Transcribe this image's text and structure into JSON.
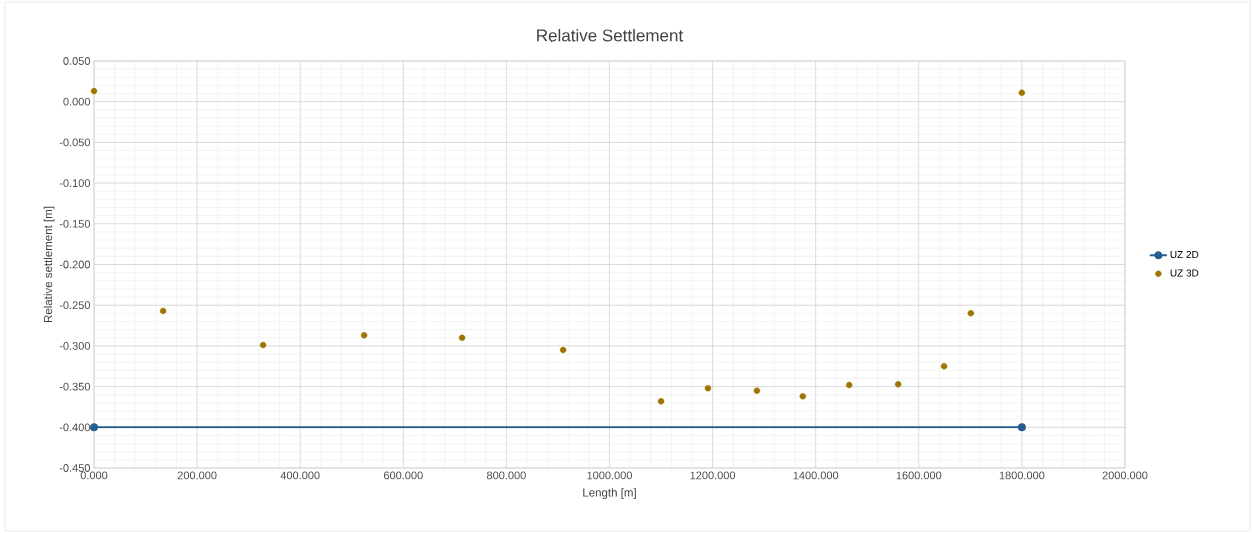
{
  "chart_data": {
    "type": "scatter",
    "title": "Relative Settlement",
    "xlabel": "Length [m]",
    "ylabel": "Relative settlement [m]",
    "xlim": [
      0,
      2000
    ],
    "ylim": [
      -0.45,
      0.05
    ],
    "xticks": [
      {
        "value": 0,
        "label": "0.000"
      },
      {
        "value": 200,
        "label": "200.000"
      },
      {
        "value": 400,
        "label": "400.000"
      },
      {
        "value": 600,
        "label": "600.000"
      },
      {
        "value": 800,
        "label": "800.000"
      },
      {
        "value": 1000,
        "label": "1000.000"
      },
      {
        "value": 1200,
        "label": "1200.000"
      },
      {
        "value": 1400,
        "label": "1400.000"
      },
      {
        "value": 1600,
        "label": "1600.000"
      },
      {
        "value": 1800,
        "label": "1800.000"
      },
      {
        "value": 2000,
        "label": "2000.000"
      }
    ],
    "yticks": [
      {
        "value": 0.05,
        "label": "0.050"
      },
      {
        "value": 0,
        "label": "0.000"
      },
      {
        "value": -0.05,
        "label": "-0.050"
      },
      {
        "value": -0.1,
        "label": "-0.100"
      },
      {
        "value": -0.15,
        "label": "-0.150"
      },
      {
        "value": -0.2,
        "label": "-0.200"
      },
      {
        "value": -0.25,
        "label": "-0.250"
      },
      {
        "value": -0.3,
        "label": "-0.300"
      },
      {
        "value": -0.35,
        "label": "-0.350"
      },
      {
        "value": -0.4,
        "label": "-0.400"
      },
      {
        "value": -0.45,
        "label": "-0.450"
      }
    ],
    "grid": true,
    "legend": "right",
    "marker": "circle",
    "series": [
      {
        "name": "UZ 2D",
        "type": "line",
        "color": "#255e91",
        "x": [
          0,
          1800
        ],
        "values": [
          -0.4,
          -0.4
        ]
      },
      {
        "name": "UZ 3D",
        "color": "#9c7600",
        "x": [
          0,
          134,
          328,
          524,
          714,
          910,
          1100,
          1191,
          1286,
          1375,
          1465,
          1560,
          1649,
          1701,
          1800
        ],
        "values": [
          0.013,
          -0.257,
          -0.299,
          -0.287,
          -0.29,
          -0.305,
          -0.368,
          -0.352,
          -0.355,
          -0.362,
          -0.348,
          -0.347,
          -0.325,
          -0.26,
          0.011
        ]
      }
    ]
  }
}
